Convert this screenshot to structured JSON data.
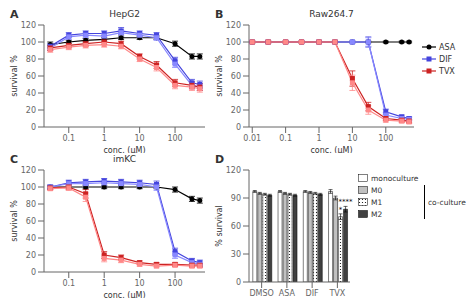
{
  "chart_data": [
    {
      "type": "line",
      "title": "HepG2",
      "x_label": "conc. (μM)",
      "y_label": "survival %",
      "log": "x",
      "xlim": [
        0.02,
        700
      ],
      "xticks": [
        0.1,
        1,
        10,
        100
      ],
      "ylim": [
        0,
        120
      ],
      "yticks": [
        0,
        20,
        40,
        60,
        80,
        100,
        120
      ],
      "x": [
        0.03,
        0.1,
        0.3,
        1,
        3,
        10,
        30,
        100,
        300,
        500
      ],
      "series": [
        {
          "color": "black",
          "marker": "circle",
          "line_style": "solid",
          "values": [
            97,
            100,
            102,
            103,
            105,
            105,
            105,
            98,
            83,
            83
          ],
          "errors": [
            3,
            2,
            2,
            2,
            2,
            2,
            2,
            3,
            3,
            3
          ]
        },
        {
          "color": "#4444dd",
          "marker": "square",
          "line_style": "solid",
          "values": [
            95,
            108,
            110,
            110,
            113,
            110,
            108,
            78,
            52,
            50
          ],
          "errors": [
            3,
            3,
            3,
            3,
            4,
            3,
            3,
            4,
            4,
            4
          ]
        },
        {
          "color": "#8888ff",
          "marker": "square",
          "line_style": "solid",
          "values": [
            93,
            106,
            108,
            107,
            111,
            108,
            105,
            74,
            49,
            47
          ],
          "errors": [
            3,
            3,
            3,
            3,
            4,
            3,
            3,
            4,
            4,
            4
          ]
        },
        {
          "color": "#cc2222",
          "marker": "square",
          "line_style": "solid",
          "values": [
            93,
            96,
            98,
            100,
            98,
            83,
            73,
            52,
            49,
            47
          ],
          "errors": [
            3,
            3,
            3,
            3,
            3,
            3,
            4,
            4,
            4,
            4
          ]
        },
        {
          "color": "#ff8888",
          "marker": "square",
          "line_style": "solid",
          "values": [
            91,
            94,
            96,
            97,
            95,
            80,
            70,
            49,
            47,
            45
          ],
          "errors": [
            3,
            3,
            3,
            3,
            3,
            3,
            4,
            4,
            4,
            4
          ]
        }
      ],
      "annotations": [
        {
          "text": "A"
        }
      ]
    },
    {
      "type": "line",
      "title": "Raw264.7",
      "x_label": "conc. (μM)",
      "y_label": "survival %",
      "log": "x",
      "xlim": [
        0.008,
        700
      ],
      "xticks": [
        0.01,
        0.1,
        1,
        10,
        100
      ],
      "ylim": [
        0,
        120
      ],
      "yticks": [
        0,
        20,
        40,
        60,
        80,
        100,
        120
      ],
      "legend": "right",
      "x": [
        0.01,
        0.03,
        0.1,
        0.3,
        1,
        3,
        10,
        30,
        100,
        300,
        500
      ],
      "series": [
        {
          "name": "ASA",
          "color": "black",
          "marker": "circle",
          "line_style": "solid",
          "values": [
            100,
            100,
            100,
            100,
            100,
            100,
            100,
            100,
            100,
            100,
            100
          ],
          "errors": [
            1,
            1,
            1,
            1,
            1,
            1,
            1,
            1,
            1,
            1,
            1
          ]
        },
        {
          "name": "DIF",
          "color": "#4444dd",
          "marker": "square",
          "line_style": "solid",
          "values": [
            100,
            100,
            100,
            100,
            100,
            100,
            100,
            100,
            18,
            12,
            10
          ],
          "errors": [
            1,
            1,
            1,
            1,
            1,
            1,
            1,
            6,
            3,
            2,
            2
          ]
        },
        {
          "color": "#8888ff",
          "marker": "square",
          "line_style": "solid",
          "values": [
            100,
            100,
            100,
            100,
            100,
            100,
            100,
            100,
            14,
            10,
            9
          ],
          "errors": [
            1,
            1,
            1,
            1,
            1,
            1,
            1,
            5,
            3,
            2,
            2
          ]
        },
        {
          "name": "TVX",
          "color": "#cc2222",
          "marker": "square",
          "line_style": "solid",
          "values": [
            100,
            100,
            100,
            100,
            100,
            100,
            57,
            24,
            10,
            8,
            7
          ],
          "errors": [
            1,
            1,
            1,
            1,
            1,
            1,
            9,
            5,
            2,
            2,
            2
          ]
        },
        {
          "color": "#ff8888",
          "marker": "square",
          "line_style": "solid",
          "values": [
            100,
            100,
            100,
            100,
            100,
            100,
            52,
            20,
            8,
            7,
            6
          ],
          "errors": [
            1,
            1,
            1,
            1,
            1,
            1,
            9,
            5,
            2,
            2,
            2
          ]
        }
      ],
      "annotations": [
        {
          "text": "B"
        }
      ]
    },
    {
      "type": "line",
      "title": "imKC",
      "x_label": "conc. (μM)",
      "y_label": "survival %",
      "log": "x",
      "xlim": [
        0.02,
        700
      ],
      "xticks": [
        0.1,
        1,
        10,
        100
      ],
      "ylim": [
        0,
        120
      ],
      "yticks": [
        0,
        20,
        40,
        60,
        80,
        100,
        120
      ],
      "x": [
        0.03,
        0.1,
        0.3,
        1,
        3,
        10,
        30,
        100,
        300,
        500
      ],
      "series": [
        {
          "color": "black",
          "marker": "circle",
          "line_style": "solid",
          "values": [
            100,
            100,
            100,
            100,
            100,
            100,
            100,
            97,
            86,
            84
          ],
          "errors": [
            2,
            2,
            2,
            2,
            2,
            2,
            2,
            3,
            3,
            3
          ]
        },
        {
          "color": "#4444dd",
          "marker": "square",
          "line_style": "solid",
          "values": [
            100,
            105,
            106,
            107,
            106,
            105,
            103,
            24,
            13,
            11
          ],
          "errors": [
            2,
            3,
            3,
            3,
            3,
            3,
            4,
            4,
            3,
            3
          ]
        },
        {
          "color": "#8888ff",
          "marker": "square",
          "line_style": "solid",
          "values": [
            100,
            104,
            104,
            105,
            104,
            103,
            100,
            20,
            11,
            9
          ],
          "errors": [
            2,
            3,
            3,
            3,
            3,
            3,
            4,
            4,
            3,
            3
          ]
        },
        {
          "color": "#cc2222",
          "marker": "square",
          "line_style": "solid",
          "values": [
            99,
            100,
            92,
            20,
            17,
            11,
            9,
            9,
            8,
            8
          ],
          "errors": [
            2,
            3,
            5,
            4,
            3,
            2,
            2,
            2,
            2,
            2
          ]
        },
        {
          "color": "#ff8888",
          "marker": "square",
          "line_style": "solid",
          "values": [
            98,
            99,
            88,
            16,
            14,
            9,
            7,
            8,
            7,
            7
          ],
          "errors": [
            2,
            3,
            5,
            4,
            3,
            2,
            2,
            2,
            2,
            2
          ]
        }
      ],
      "annotations": [
        {
          "text": "C"
        }
      ]
    },
    {
      "type": "bar",
      "y_label": "% survival",
      "categories": [
        "DMSO",
        "ASA",
        "DIF",
        "TVX"
      ],
      "ylim": [
        0,
        120
      ],
      "yticks": [
        0,
        30,
        60,
        90,
        120
      ],
      "legend": "right",
      "series": [
        {
          "name": "monoculture",
          "color": "#ffffff",
          "values": [
            97,
            97,
            97,
            97
          ],
          "errors": [
            1,
            1,
            1,
            2
          ]
        },
        {
          "name": "M0",
          "color": "#c0c0c0",
          "values": [
            95,
            95,
            96,
            90
          ],
          "errors": [
            1,
            1,
            1,
            2
          ]
        },
        {
          "name": "M1",
          "color": "#ffffff",
          "values": [
            94,
            94,
            95,
            70
          ],
          "errors": [
            1,
            1,
            1,
            3
          ]
        },
        {
          "name": "M2",
          "color": "#404040",
          "values": [
            93,
            93,
            94,
            78
          ],
          "errors": [
            1,
            1,
            1,
            3
          ]
        }
      ],
      "annotations": [
        {
          "text": "D"
        },
        {
          "text": "*",
          "category": "TVX",
          "series": "M1"
        },
        {
          "text": "****",
          "category": "TVX",
          "series": "M2"
        },
        {
          "text": "co-culture",
          "series": [
            "M0",
            "M1",
            "M2"
          ]
        }
      ]
    }
  ]
}
